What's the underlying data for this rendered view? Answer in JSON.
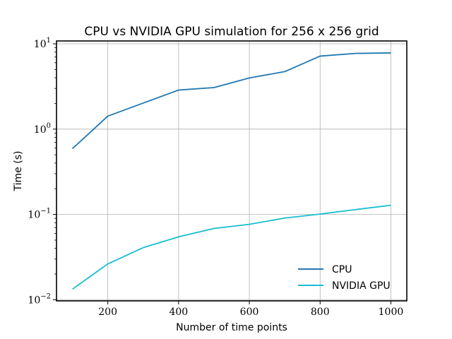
{
  "chart_data": {
    "type": "line",
    "title": "CPU vs NVIDIA GPU simulation for 256 x 256 grid",
    "xlabel": "Number of time points",
    "ylabel": "Time (s)",
    "xlim": [
      55,
      1045
    ],
    "ylim": [
      0.0097,
      10.8
    ],
    "yscale": "log",
    "grid": true,
    "legend_position": "lower-right",
    "x_ticks": [
      200,
      400,
      600,
      800,
      1000
    ],
    "x_tick_labels": [
      "200",
      "400",
      "600",
      "800",
      "1000"
    ],
    "y_ticks": [
      0.01,
      0.1,
      1,
      10
    ],
    "y_tick_labels": [
      {
        "base": "10",
        "exp": "−2"
      },
      {
        "base": "10",
        "exp": "−1"
      },
      {
        "base": "10",
        "exp": "0"
      },
      {
        "base": "10",
        "exp": "1"
      }
    ],
    "x": [
      100,
      200,
      300,
      400,
      500,
      600,
      700,
      800,
      900,
      1000
    ],
    "series": [
      {
        "name": "CPU",
        "color": "#1f77b4",
        "values": [
          0.59,
          1.42,
          2.02,
          2.87,
          3.07,
          3.98,
          4.72,
          7.18,
          7.72,
          7.82
        ]
      },
      {
        "name": "NVIDIA GPU",
        "color": "#17becf",
        "values": [
          0.0133,
          0.0263,
          0.0408,
          0.0546,
          0.0685,
          0.0766,
          0.0906,
          0.101,
          0.114,
          0.128
        ]
      }
    ]
  }
}
